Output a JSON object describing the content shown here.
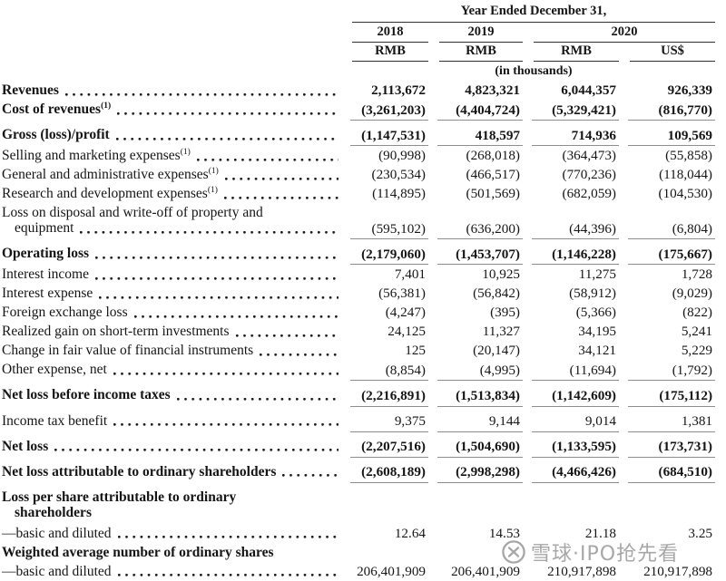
{
  "colors": {
    "background": "#ffffff",
    "text": "#151515",
    "header_rule": "#2f2f2f",
    "data_rule": "#8e8e8e",
    "watermark": "#8f8f8f"
  },
  "header": {
    "title": "Year Ended December 31,",
    "years": [
      "2018",
      "2019",
      "2020"
    ],
    "currencies": [
      "RMB",
      "RMB",
      "RMB",
      "US$"
    ],
    "unit_note": "(in thousands)"
  },
  "rows": [
    {
      "label": "Revenues",
      "sup": null,
      "label2": null,
      "bold": true,
      "dots": true,
      "values": [
        "2,113,672",
        "4,823,321",
        "6,044,357",
        "926,339"
      ],
      "values_bold": true,
      "rule": false,
      "section": false
    },
    {
      "label": "Cost of revenues",
      "sup": "(1)",
      "label2": null,
      "bold": true,
      "dots": true,
      "values": [
        "(3,261,203)",
        "(4,404,724)",
        "(5,329,421)",
        "(816,770)"
      ],
      "values_bold": true,
      "rule": true,
      "section": false
    },
    {
      "label": "Gross (loss)/profit",
      "sup": null,
      "label2": null,
      "bold": true,
      "dots": true,
      "values": [
        "(1,147,531)",
        "418,597",
        "714,936",
        "109,569"
      ],
      "values_bold": true,
      "rule": true,
      "section": true
    },
    {
      "label": "Selling and marketing expenses",
      "sup": "(1)",
      "label2": null,
      "bold": false,
      "dots": true,
      "values": [
        "(90,998)",
        "(268,018)",
        "(364,473)",
        "(55,858)"
      ],
      "values_bold": false,
      "rule": false,
      "section": false
    },
    {
      "label": "General and administrative expenses",
      "sup": "(1)",
      "label2": null,
      "bold": false,
      "dots": true,
      "values": [
        "(230,534)",
        "(466,517)",
        "(770,236)",
        "(118,044)"
      ],
      "values_bold": false,
      "rule": false,
      "section": false
    },
    {
      "label": "Research and development expenses",
      "sup": "(1)",
      "label2": null,
      "bold": false,
      "dots": true,
      "values": [
        "(114,895)",
        "(501,569)",
        "(682,059)",
        "(104,530)"
      ],
      "values_bold": false,
      "rule": false,
      "section": false
    },
    {
      "label": "Loss on disposal and write-off of property and",
      "sup": null,
      "label2": "equipment",
      "bold": false,
      "dots": true,
      "values": [
        "(595,102)",
        "(636,200)",
        "(44,396)",
        "(6,804)"
      ],
      "values_bold": false,
      "rule": true,
      "section": false
    },
    {
      "label": "Operating loss",
      "sup": null,
      "label2": null,
      "bold": true,
      "dots": true,
      "values": [
        "(2,179,060)",
        "(1,453,707)",
        "(1,146,228)",
        "(175,667)"
      ],
      "values_bold": true,
      "rule": true,
      "section": true
    },
    {
      "label": "Interest income",
      "sup": null,
      "label2": null,
      "bold": false,
      "dots": true,
      "values": [
        "7,401",
        "10,925",
        "11,275",
        "1,728"
      ],
      "values_bold": false,
      "rule": false,
      "section": false
    },
    {
      "label": "Interest expense",
      "sup": null,
      "label2": null,
      "bold": false,
      "dots": true,
      "values": [
        "(56,381)",
        "(56,842)",
        "(58,912)",
        "(9,029)"
      ],
      "values_bold": false,
      "rule": false,
      "section": false
    },
    {
      "label": "Foreign exchange loss",
      "sup": null,
      "label2": null,
      "bold": false,
      "dots": true,
      "values": [
        "(4,247)",
        "(395)",
        "(5,366)",
        "(822)"
      ],
      "values_bold": false,
      "rule": false,
      "section": false
    },
    {
      "label": "Realized gain on short-term investments",
      "sup": null,
      "label2": null,
      "bold": false,
      "dots": true,
      "values": [
        "24,125",
        "11,327",
        "34,195",
        "5,241"
      ],
      "values_bold": false,
      "rule": false,
      "section": false
    },
    {
      "label": "Change in fair value of financial instruments",
      "sup": null,
      "label2": null,
      "bold": false,
      "dots": true,
      "values": [
        "125",
        "(20,147)",
        "34,121",
        "5,229"
      ],
      "values_bold": false,
      "rule": false,
      "section": false
    },
    {
      "label": "Other expense, net",
      "sup": null,
      "label2": null,
      "bold": false,
      "dots": true,
      "values": [
        "(8,854)",
        "(4,995)",
        "(11,694)",
        "(1,792)"
      ],
      "values_bold": false,
      "rule": true,
      "section": false
    },
    {
      "label": "Net loss before income taxes",
      "sup": null,
      "label2": null,
      "bold": true,
      "dots": true,
      "values": [
        "(2,216,891)",
        "(1,513,834)",
        "(1,142,609)",
        "(175,112)"
      ],
      "values_bold": true,
      "rule": true,
      "section": true
    },
    {
      "label": "Income tax benefit",
      "sup": null,
      "label2": null,
      "bold": false,
      "dots": true,
      "values": [
        "9,375",
        "9,144",
        "9,014",
        "1,381"
      ],
      "values_bold": false,
      "rule": true,
      "section": true
    },
    {
      "label": "Net loss",
      "sup": null,
      "label2": null,
      "bold": true,
      "dots": true,
      "values": [
        "(2,207,516)",
        "(1,504,690)",
        "(1,133,595)",
        "(173,731)"
      ],
      "values_bold": true,
      "rule": true,
      "section": true
    },
    {
      "label": "Net loss attributable to ordinary shareholders",
      "sup": null,
      "label2": null,
      "bold": true,
      "dots": true,
      "values": [
        "(2,608,189)",
        "(2,998,298)",
        "(4,466,426)",
        "(684,510)"
      ],
      "values_bold": true,
      "rule": true,
      "section": true
    },
    {
      "label": "Loss per share attributable to ordinary",
      "sup": null,
      "label2": "shareholders",
      "bold": true,
      "dots": false,
      "values": null,
      "values_bold": false,
      "rule": false,
      "section": true
    },
    {
      "label": "—basic and diluted",
      "sup": null,
      "label2": null,
      "bold": false,
      "dots": true,
      "values": [
        "12.64",
        "14.53",
        "21.18",
        "3.25"
      ],
      "values_bold": false,
      "rule": false,
      "section": false
    },
    {
      "label": "Weighted average number of ordinary shares",
      "sup": null,
      "label2": null,
      "bold": true,
      "dots": false,
      "values": null,
      "values_bold": false,
      "rule": false,
      "section": false
    },
    {
      "label": "—basic and diluted",
      "sup": null,
      "label2": null,
      "bold": false,
      "dots": true,
      "values": [
        "206,401,909",
        "206,401,909",
        "210,917,898",
        "210,917,898"
      ],
      "values_bold": false,
      "rule": false,
      "section": false
    }
  ],
  "watermark": {
    "icon": "xueqiu-snowball-logo",
    "text": "雪球·IPO抢先看"
  }
}
